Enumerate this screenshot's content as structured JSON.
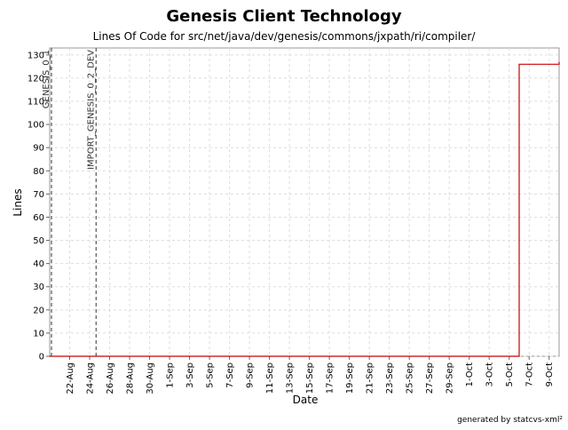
{
  "chart_data": {
    "type": "line",
    "title": "Genesis Client Technology",
    "subtitle": "Lines Of Code for src/net/java/dev/genesis/commons/jxpath/ri/compiler/",
    "xlabel": "Date",
    "ylabel": "Lines",
    "x_ticks": [
      "22-Aug",
      "24-Aug",
      "26-Aug",
      "28-Aug",
      "30-Aug",
      "1-Sep",
      "3-Sep",
      "5-Sep",
      "7-Sep",
      "9-Sep",
      "11-Sep",
      "13-Sep",
      "15-Sep",
      "17-Sep",
      "19-Sep",
      "21-Sep",
      "23-Sep",
      "25-Sep",
      "27-Sep",
      "29-Sep",
      "1-Oct",
      "3-Oct",
      "5-Oct",
      "7-Oct",
      "9-Oct"
    ],
    "x_range": [
      "20-Aug",
      "10-Oct"
    ],
    "ylim": [
      0,
      133
    ],
    "y_ticks": [
      0,
      10,
      20,
      30,
      40,
      50,
      60,
      70,
      80,
      90,
      100,
      110,
      120,
      130
    ],
    "grid": true,
    "series": [
      {
        "color": "#cc0000",
        "points": [
          {
            "x": "20-Aug",
            "y": 0
          },
          {
            "x": "6-Oct",
            "y": 0
          },
          {
            "x": "6-Oct",
            "y": 126
          },
          {
            "x": "10-Oct",
            "y": 126
          },
          {
            "x": "10-Oct",
            "y": 127
          }
        ]
      }
    ],
    "markers": [
      {
        "label": "GENESIS_0_1",
        "x": "20-Aug"
      },
      {
        "label": "IMPORT_GENESIS_0_2_DEV",
        "x": "25-Aug"
      }
    ],
    "footer": "generated by statcvs-xml²"
  }
}
